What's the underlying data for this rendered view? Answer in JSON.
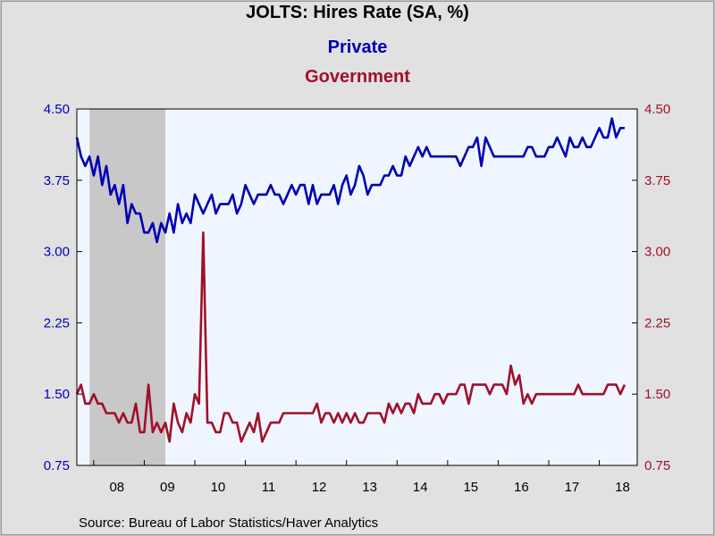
{
  "chart_data": {
    "type": "line",
    "title": "JOLTS: Hires Rate (SA, %)",
    "source": "Source:  Bureau of Labor Statistics/Haver Analytics",
    "x_start": "2007-09",
    "x_end": "2018-10",
    "x_tick_labels": [
      "08",
      "09",
      "10",
      "11",
      "12",
      "13",
      "14",
      "15",
      "16",
      "17",
      "18"
    ],
    "ylim": [
      0.75,
      4.5
    ],
    "y_ticks": [
      "0.75",
      "1.50",
      "2.25",
      "3.00",
      "3.75",
      "4.50"
    ],
    "y_right_ticks": [
      "0.75",
      "1.50",
      "2.25",
      "3.00",
      "3.75",
      "4.50"
    ],
    "shaded_period": {
      "start": "2007-12",
      "end": "2009-06"
    },
    "grid": false,
    "legend_position": "top-center",
    "series": [
      {
        "name": "Private",
        "color": "#0000b4",
        "axis": "left",
        "values": [
          4.2,
          4.0,
          3.9,
          4.0,
          3.8,
          4.0,
          3.7,
          3.9,
          3.6,
          3.7,
          3.5,
          3.7,
          3.3,
          3.5,
          3.4,
          3.4,
          3.2,
          3.2,
          3.3,
          3.1,
          3.3,
          3.2,
          3.4,
          3.2,
          3.5,
          3.3,
          3.4,
          3.3,
          3.6,
          3.5,
          3.4,
          3.5,
          3.6,
          3.4,
          3.5,
          3.5,
          3.5,
          3.6,
          3.4,
          3.5,
          3.7,
          3.6,
          3.5,
          3.6,
          3.6,
          3.6,
          3.7,
          3.6,
          3.6,
          3.5,
          3.6,
          3.7,
          3.6,
          3.7,
          3.7,
          3.5,
          3.7,
          3.5,
          3.6,
          3.6,
          3.6,
          3.7,
          3.5,
          3.7,
          3.8,
          3.6,
          3.7,
          3.9,
          3.8,
          3.6,
          3.7,
          3.7,
          3.7,
          3.8,
          3.8,
          3.9,
          3.8,
          3.8,
          4.0,
          3.9,
          4.0,
          4.1,
          4.0,
          4.1,
          4.0,
          4.0,
          4.0,
          4.0,
          4.0,
          4.0,
          4.0,
          3.9,
          4.0,
          4.1,
          4.1,
          4.2,
          3.9,
          4.2,
          4.1,
          4.0,
          4.0,
          4.0,
          4.0,
          4.0,
          4.0,
          4.0,
          4.0,
          4.1,
          4.1,
          4.0,
          4.0,
          4.0,
          4.1,
          4.1,
          4.2,
          4.1,
          4.0,
          4.2,
          4.1,
          4.1,
          4.2,
          4.1,
          4.1,
          4.2,
          4.3,
          4.2,
          4.2,
          4.4,
          4.2,
          4.3,
          4.3
        ]
      },
      {
        "name": "Government",
        "color": "#a0102a",
        "axis": "right",
        "values": [
          1.5,
          1.6,
          1.4,
          1.4,
          1.5,
          1.4,
          1.4,
          1.3,
          1.3,
          1.3,
          1.2,
          1.3,
          1.2,
          1.2,
          1.4,
          1.1,
          1.1,
          1.6,
          1.1,
          1.2,
          1.1,
          1.2,
          1.0,
          1.4,
          1.2,
          1.1,
          1.3,
          1.2,
          1.5,
          1.4,
          3.2,
          1.2,
          1.2,
          1.1,
          1.1,
          1.3,
          1.3,
          1.2,
          1.2,
          1.0,
          1.1,
          1.2,
          1.1,
          1.3,
          1.0,
          1.1,
          1.2,
          1.2,
          1.2,
          1.3,
          1.3,
          1.3,
          1.3,
          1.3,
          1.3,
          1.3,
          1.3,
          1.4,
          1.2,
          1.3,
          1.3,
          1.2,
          1.3,
          1.2,
          1.3,
          1.2,
          1.3,
          1.2,
          1.2,
          1.3,
          1.3,
          1.3,
          1.3,
          1.2,
          1.4,
          1.3,
          1.4,
          1.3,
          1.4,
          1.4,
          1.3,
          1.5,
          1.4,
          1.4,
          1.4,
          1.5,
          1.5,
          1.4,
          1.5,
          1.5,
          1.5,
          1.6,
          1.6,
          1.4,
          1.6,
          1.6,
          1.6,
          1.6,
          1.5,
          1.6,
          1.6,
          1.6,
          1.5,
          1.8,
          1.6,
          1.7,
          1.4,
          1.5,
          1.4,
          1.5,
          1.5,
          1.5,
          1.5,
          1.5,
          1.5,
          1.5,
          1.5,
          1.5,
          1.5,
          1.6,
          1.5,
          1.5,
          1.5,
          1.5,
          1.5,
          1.5,
          1.6,
          1.6,
          1.6,
          1.5,
          1.6
        ]
      }
    ]
  }
}
